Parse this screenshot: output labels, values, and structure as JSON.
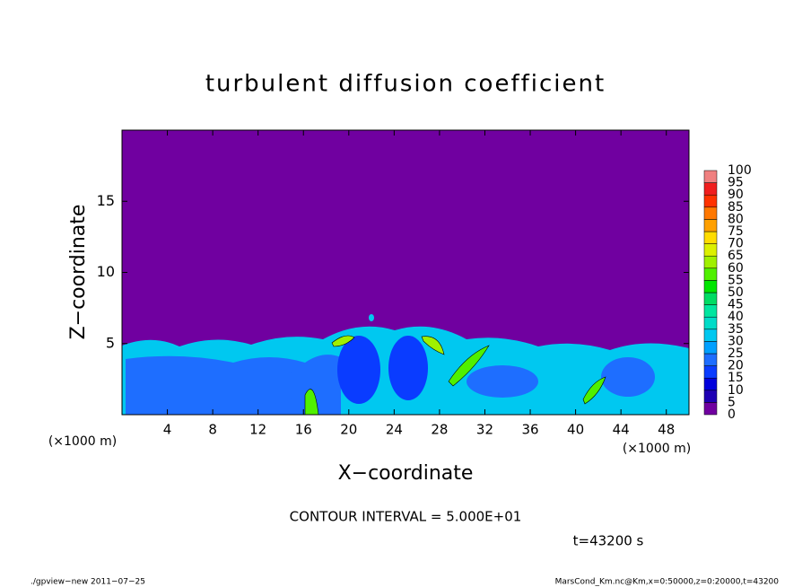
{
  "chart_data": {
    "type": "contour",
    "title": "turbulent diffusion coefficient",
    "x_label": "X−coordinate",
    "y_label": "Z−coordinate",
    "x_unit": "(×1000 m)",
    "xlim": [
      0,
      50
    ],
    "xticks": [
      4,
      8,
      12,
      16,
      20,
      24,
      28,
      32,
      36,
      40,
      44,
      48
    ],
    "ylim": [
      0,
      20
    ],
    "yticks": [
      5,
      10,
      15
    ],
    "colorbar": {
      "levels": [
        0,
        5,
        10,
        15,
        20,
        25,
        30,
        35,
        40,
        45,
        50,
        55,
        60,
        65,
        70,
        75,
        80,
        85,
        90,
        95,
        100
      ],
      "colors": [
        "#7000a0",
        "#1e00b4",
        "#0000dc",
        "#0a3cff",
        "#1e6eff",
        "#00a0ff",
        "#00c8f0",
        "#00dcc8",
        "#00e6a0",
        "#00dc64",
        "#00e600",
        "#50f000",
        "#a0f000",
        "#dcf000",
        "#ffdc00",
        "#ffa000",
        "#ff7800",
        "#ff3200",
        "#f01e1e",
        "#f08080"
      ]
    },
    "contour_interval": "CONTOUR INTERVAL = 5.000E+01",
    "time_label": "t=43200 s",
    "footer_left": "./gpview−new  2011−07−25",
    "footer_right": "MarsCond_Km.nc@Km,x=0:50000,z=0:20000,t=43200"
  }
}
